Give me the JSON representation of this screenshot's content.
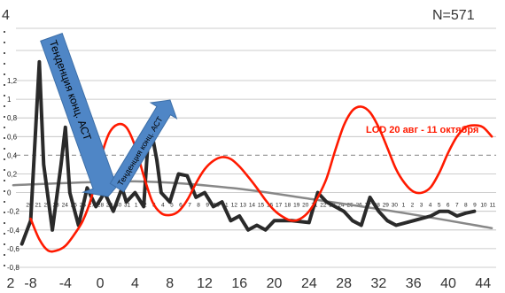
{
  "chart_data": {
    "type": "line",
    "title": "",
    "corner_left": "4",
    "sample_size": "N=571",
    "y_ticks": [
      "1,2",
      "1",
      "0,8",
      "0,6",
      "0,4",
      "0,2",
      "0",
      "-0,2",
      "-0,4",
      "-0,6",
      "-0,8"
    ],
    "x_ticks": [
      "2",
      "-8",
      "-4",
      "0",
      "4",
      "8",
      "12",
      "16",
      "20",
      "24",
      "28",
      "32",
      "36",
      "40",
      "44"
    ],
    "date_labels": [
      "20",
      "21",
      "22",
      "23",
      "24",
      "25",
      "26",
      "27",
      "28",
      "29",
      "30",
      "31",
      "1",
      "2",
      "3",
      "4",
      "5",
      "6",
      "7",
      "8",
      "9",
      "10",
      "11",
      "12",
      "13",
      "14",
      "15",
      "16",
      "17",
      "18",
      "19",
      "20",
      "21",
      "22",
      "23",
      "24",
      "25",
      "26",
      "27",
      "28",
      "29",
      "30",
      "1",
      "2",
      "3",
      "4",
      "5",
      "6",
      "7",
      "8",
      "9",
      "10",
      "11"
    ],
    "ylim": [
      -0.8,
      1.2
    ],
    "xlim": [
      -10.5,
      45.5
    ],
    "grid": true,
    "colors": {
      "lod": "#ff1a00",
      "act": "#2a2a2a",
      "trend": "#888888",
      "arrow": "#4f86c6",
      "grid": "#bdbdbd"
    },
    "annotations": {
      "lod_label": "LOD 20 авг - 11 октября",
      "arrow1_label": "Тенденция конц. АСТ",
      "arrow2_label": "Тенденция конц. АСТ"
    },
    "series": [
      {
        "key": "lod",
        "points": [
          [
            -8,
            -0.28
          ],
          [
            -7,
            -0.5
          ],
          [
            -6,
            -0.62
          ],
          [
            -5,
            -0.62
          ],
          [
            -4,
            -0.57
          ],
          [
            -3,
            -0.45
          ],
          [
            -2,
            -0.3
          ],
          [
            -1,
            -0.05
          ],
          [
            0,
            0.35
          ],
          [
            1,
            0.63
          ],
          [
            2,
            0.73
          ],
          [
            3,
            0.7
          ],
          [
            4,
            0.5
          ],
          [
            5,
            0.18
          ],
          [
            6,
            -0.1
          ],
          [
            7,
            -0.22
          ],
          [
            8,
            -0.24
          ],
          [
            9,
            -0.2
          ],
          [
            10,
            -0.08
          ],
          [
            11,
            0.1
          ],
          [
            12,
            0.25
          ],
          [
            13,
            0.34
          ],
          [
            14,
            0.38
          ],
          [
            15,
            0.36
          ],
          [
            16,
            0.28
          ],
          [
            17,
            0.17
          ],
          [
            18,
            0.05
          ],
          [
            19,
            -0.08
          ],
          [
            20,
            -0.19
          ],
          [
            21,
            -0.26
          ],
          [
            22,
            -0.3
          ],
          [
            23,
            -0.28
          ],
          [
            24,
            -0.2
          ],
          [
            25,
            -0.05
          ],
          [
            26,
            0.15
          ],
          [
            27,
            0.45
          ],
          [
            28,
            0.72
          ],
          [
            29,
            0.88
          ],
          [
            30,
            0.92
          ],
          [
            31,
            0.86
          ],
          [
            32,
            0.7
          ],
          [
            33,
            0.48
          ],
          [
            34,
            0.25
          ],
          [
            35,
            0.1
          ],
          [
            36,
            0.01
          ],
          [
            37,
            0.0
          ],
          [
            38,
            0.06
          ],
          [
            39,
            0.22
          ],
          [
            40,
            0.43
          ],
          [
            41,
            0.6
          ],
          [
            42,
            0.7
          ],
          [
            43,
            0.72
          ],
          [
            44,
            0.7
          ],
          [
            45,
            0.6
          ]
        ]
      },
      {
        "key": "act",
        "points": [
          [
            -9,
            -0.55
          ],
          [
            -8,
            -0.3
          ],
          [
            -7,
            1.4
          ],
          [
            -6.5,
            0.3
          ],
          [
            -5.5,
            -0.4
          ],
          [
            -4.5,
            0.3
          ],
          [
            -4,
            0.7
          ],
          [
            -3.5,
            0.0
          ],
          [
            -2.5,
            -0.35
          ],
          [
            -1.5,
            0.05
          ],
          [
            -0.5,
            -0.15
          ],
          [
            0.5,
            0.0
          ],
          [
            1.5,
            -0.2
          ],
          [
            2.5,
            0.05
          ],
          [
            3,
            -0.1
          ],
          [
            4,
            0.0
          ],
          [
            5,
            -0.15
          ],
          [
            5.5,
            0.55
          ],
          [
            6,
            0.6
          ],
          [
            6.5,
            0.35
          ],
          [
            7,
            0.0
          ],
          [
            8,
            -0.1
          ],
          [
            9,
            0.2
          ],
          [
            10,
            0.18
          ],
          [
            11,
            -0.05
          ],
          [
            12,
            0.0
          ],
          [
            13,
            -0.15
          ],
          [
            14,
            -0.1
          ],
          [
            15,
            -0.3
          ],
          [
            16,
            -0.25
          ],
          [
            17,
            -0.4
          ],
          [
            18,
            -0.35
          ],
          [
            19,
            -0.4
          ],
          [
            20,
            -0.3
          ],
          [
            22,
            -0.3
          ],
          [
            24,
            -0.32
          ],
          [
            25,
            0.0
          ],
          [
            26,
            -0.1
          ],
          [
            28,
            -0.2
          ],
          [
            29,
            -0.3
          ],
          [
            30,
            -0.35
          ],
          [
            31,
            -0.05
          ],
          [
            32,
            -0.2
          ],
          [
            33,
            -0.3
          ],
          [
            34,
            -0.35
          ],
          [
            36,
            -0.3
          ],
          [
            38,
            -0.25
          ],
          [
            39,
            -0.2
          ],
          [
            40,
            -0.2
          ],
          [
            41,
            -0.25
          ],
          [
            42,
            -0.22
          ],
          [
            43,
            -0.2
          ]
        ]
      },
      {
        "key": "trend",
        "points": [
          [
            -10,
            0.08
          ],
          [
            4,
            0.12
          ],
          [
            15,
            0.05
          ],
          [
            25,
            -0.08
          ],
          [
            35,
            -0.22
          ],
          [
            45,
            -0.38
          ]
        ]
      }
    ]
  }
}
